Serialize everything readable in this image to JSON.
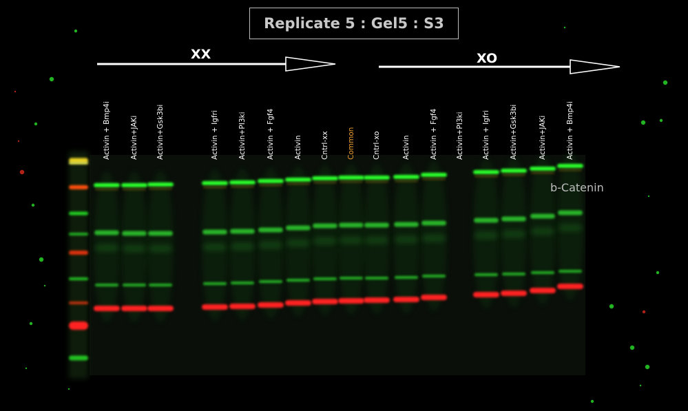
{
  "title": "Replicate 5 : Gel5 : S3",
  "groups": [
    {
      "label": "XX"
    },
    {
      "label": "XO"
    }
  ],
  "lanes": [
    {
      "label": "Activin + Bmp4i"
    },
    {
      "label": "Activin+JAKi"
    },
    {
      "label": "Activin+Gsk3bi"
    },
    {
      "label": "Activin + Igfri"
    },
    {
      "label": "Activin+PI3ki"
    },
    {
      "label": "Activin + Fgf4"
    },
    {
      "label": "Activin"
    },
    {
      "label": "Cntrl-xx"
    },
    {
      "label": "Common",
      "color": "#f0a030"
    },
    {
      "label": "Cntrl-xo"
    },
    {
      "label": "Activin"
    },
    {
      "label": "Activin + Fgf4"
    },
    {
      "label": "Activin+PI3ki"
    },
    {
      "label": "Activin + Igfri"
    },
    {
      "label": "Activin+Gsk3bi"
    },
    {
      "label": "Activin+JAKi"
    },
    {
      "label": "Activin + Bmp4i"
    }
  ],
  "band_label": "b-Catenin",
  "colors": {
    "green_channel": "#2aff2a",
    "red_channel": "#ff2020",
    "text": "#ffffff",
    "title": "#c8c8c8"
  }
}
